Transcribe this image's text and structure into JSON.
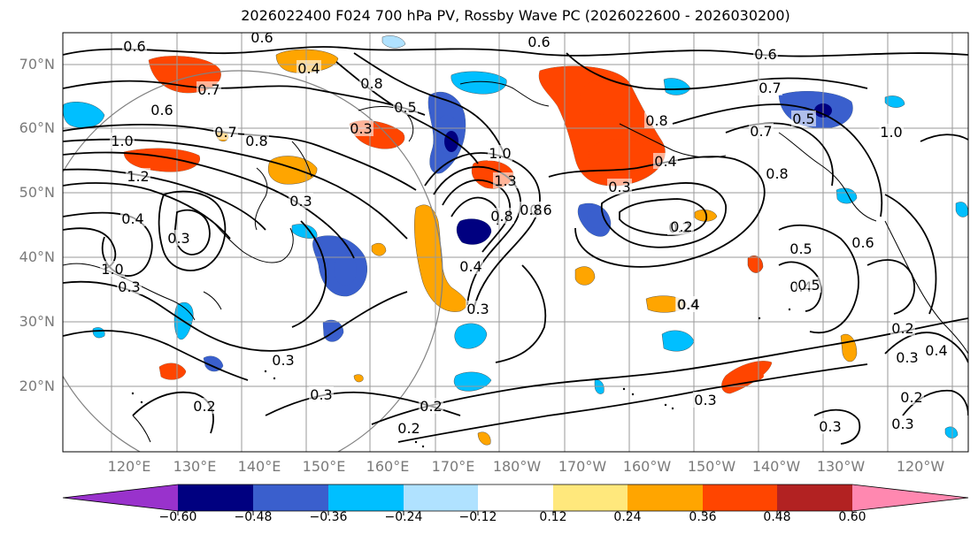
{
  "title": "2026022400 F024 700 hPa PV, Rossby Wave PC (2026022600 - 2026030200)",
  "lat_labels": [
    "70°N",
    "60°N",
    "50°N",
    "40°N",
    "30°N",
    "20°N"
  ],
  "lon_labels": [
    "120°E",
    "130°E",
    "140°E",
    "150°E",
    "160°E",
    "170°E",
    "180°W",
    "170°W",
    "160°W",
    "150°W",
    "140°W",
    "130°W",
    "120°W"
  ],
  "colorbar": {
    "ticks": [
      "−0.60",
      "−0.48",
      "−0.36",
      "−0.24",
      "−0.12",
      "0.12",
      "0.24",
      "0.36",
      "0.48",
      "0.60"
    ],
    "colors": [
      "#9932cc",
      "#000080",
      "#3a5fcd",
      "#00bfff",
      "#b0e2ff",
      "#ffffff",
      "#ffe87c",
      "#ffa500",
      "#ff4500",
      "#b22222",
      "#ff88b0"
    ]
  },
  "contour_labels": [
    "0.6",
    "0.6",
    "0.4",
    "0.6",
    "0.7",
    "0.6",
    "0.8",
    "0.5",
    "0.3",
    "0.8",
    "0.7",
    "0.8",
    "1.0",
    "1.2",
    "1.0",
    "0.3",
    "1.3",
    "0.8",
    "0.6",
    "0.4",
    "0.3",
    "0.6",
    "0.8",
    "0.5",
    "0.7",
    "0.2",
    "0.4",
    "0.6",
    "0.5",
    "0.4",
    "1.0",
    "0.2",
    "0.3",
    "0.3",
    "0.2",
    "0.3",
    "0.4",
    "0.3",
    "0.3",
    "0.2",
    "0.3",
    "0.4",
    "0.2",
    "0.2",
    "0.3",
    "0.3",
    "0.4",
    "0.7",
    "1.0",
    "0.5",
    "0.8",
    "0.2",
    "0.4",
    "0.3"
  ]
}
